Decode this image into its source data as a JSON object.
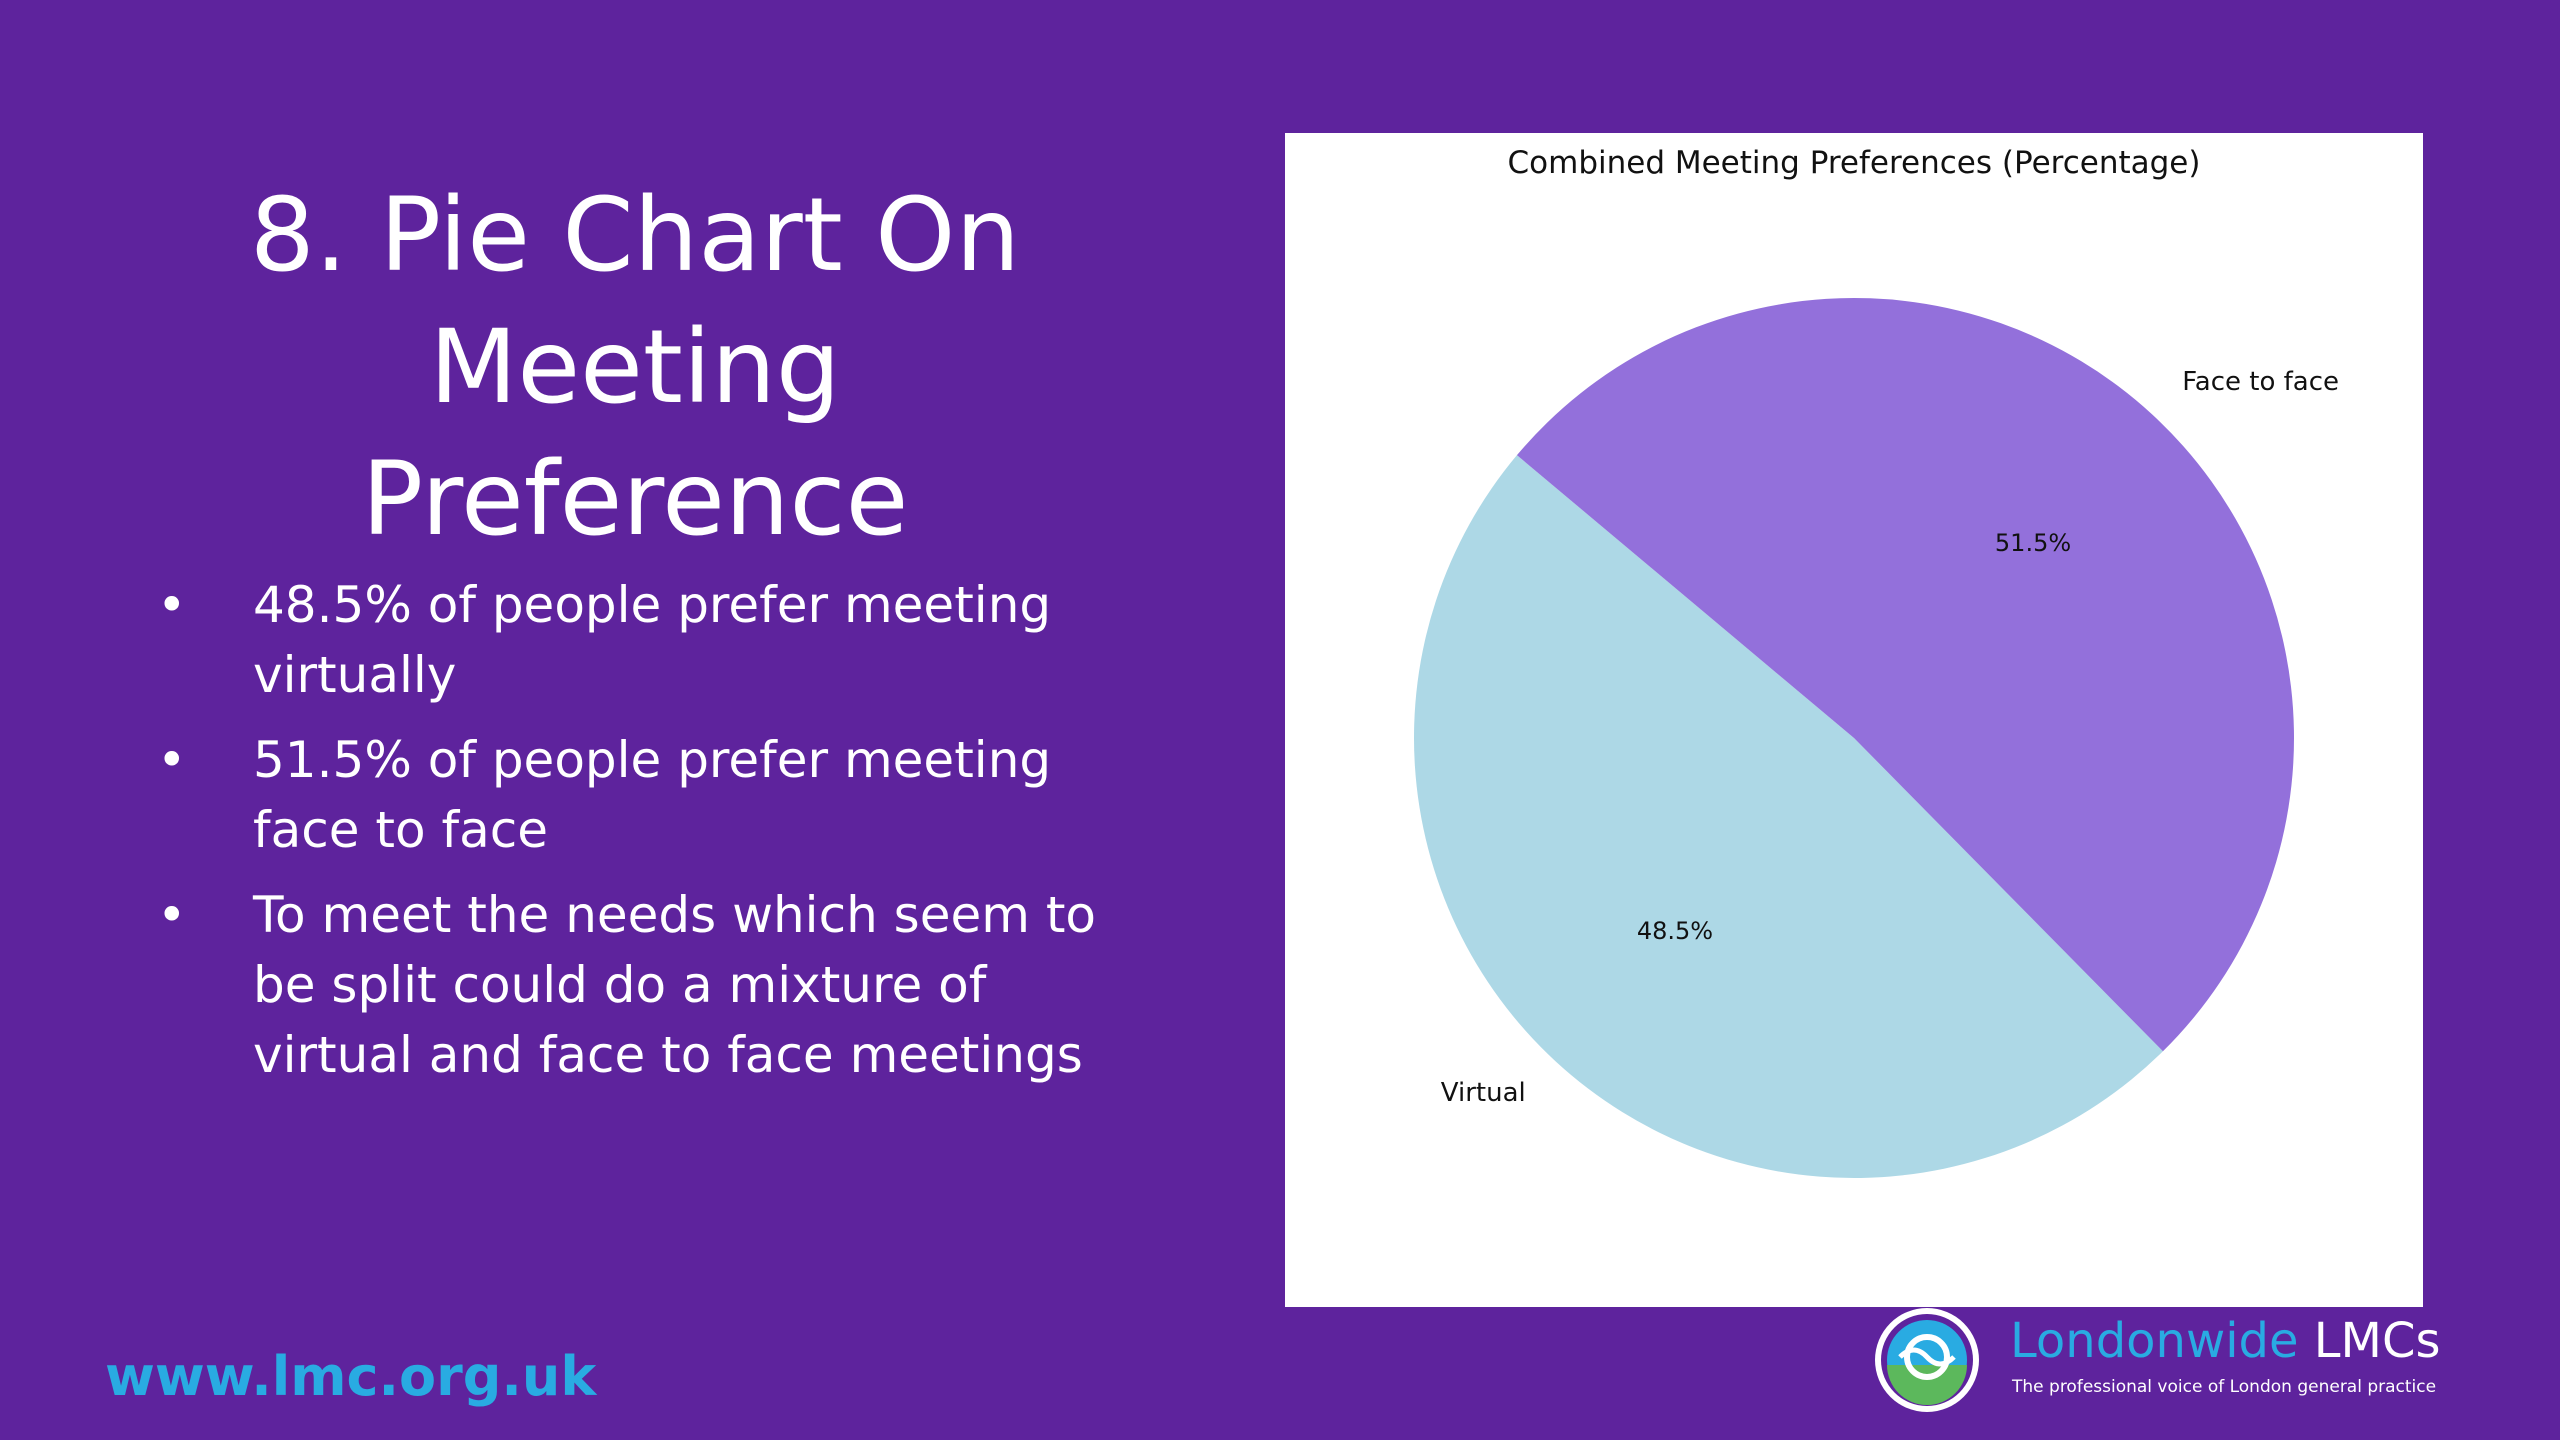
{
  "slide": {
    "title_line1": "8. Pie Chart On",
    "title_line2": "Meeting Preference",
    "bullets": [
      "48.5% of people prefer meeting virtually",
      "51.5% of people prefer meeting face to face",
      "To meet the needs which seem to be split could do a mixture of virtual and face to face meetings"
    ],
    "website": "www.lmc.org.uk",
    "logo": {
      "name_part1": "Londonwide",
      "name_part2": " LMCs",
      "tagline": "The professional voice of London general practice",
      "icon": "londonwide-lmcs-logo-icon"
    }
  },
  "colors": {
    "background": "#5e239d",
    "virtual": "#add8e6",
    "face_to_face": "#9370db",
    "website": "#29abe2"
  },
  "chart_data": {
    "type": "pie",
    "title": "Combined Meeting Preferences (Percentage)",
    "categories": [
      "Virtual",
      "Face to face"
    ],
    "values": [
      48.5,
      51.5
    ],
    "value_labels": [
      "48.5%",
      "51.5%"
    ],
    "colors": [
      "#add8e6",
      "#9370db"
    ],
    "start_angle_deg": 140,
    "counterclockwise": true
  }
}
